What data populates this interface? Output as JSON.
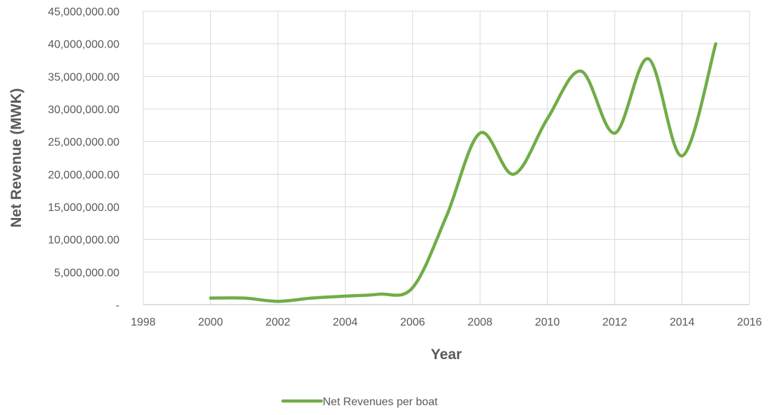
{
  "chart_data": {
    "type": "line",
    "title": "",
    "xlabel": "Year",
    "ylabel": "Net Revenue (MWK)",
    "xlim": [
      1998,
      2016
    ],
    "ylim": [
      0,
      45000000
    ],
    "x_ticks": [
      "1998",
      "2000",
      "2002",
      "2004",
      "2006",
      "2008",
      "2010",
      "2012",
      "2014",
      "2016"
    ],
    "y_ticks": [
      "-",
      "5,000,000.00",
      "10,000,000.00",
      "15,000,000.00",
      "20,000,000.00",
      "25,000,000.00",
      "30,000,000.00",
      "35,000,000.00",
      "40,000,000.00",
      "45,000,000.00"
    ],
    "grid": true,
    "legend_position": "bottom",
    "series": [
      {
        "name": "Net Revenues per boat",
        "color": "#70ad47",
        "x": [
          2000,
          2001,
          2002,
          2003,
          2004,
          2005,
          2006,
          2007,
          2008,
          2009,
          2010,
          2011,
          2012,
          2013,
          2014,
          2015
        ],
        "y": [
          1000000,
          1000000,
          500000,
          1000000,
          1300000,
          1600000,
          2600000,
          13500000,
          26300000,
          20000000,
          28500000,
          35800000,
          26300000,
          37700000,
          22800000,
          40000000
        ]
      }
    ]
  }
}
